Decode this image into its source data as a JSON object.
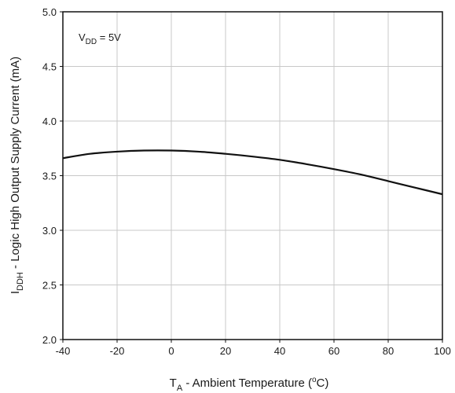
{
  "chart_data": {
    "type": "line",
    "title": "",
    "x": [
      -40,
      -30,
      -20,
      -10,
      0,
      10,
      20,
      30,
      40,
      50,
      60,
      70,
      80,
      90,
      100
    ],
    "series": [
      {
        "values": [
          3.66,
          3.7,
          3.72,
          3.73,
          3.73,
          3.72,
          3.7,
          3.675,
          3.645,
          3.605,
          3.56,
          3.51,
          3.45,
          3.39,
          3.33
        ]
      }
    ],
    "xlim": [
      -40,
      100
    ],
    "ylim": [
      2.0,
      5.0
    ],
    "x_ticks": [
      "-40",
      "-20",
      "0",
      "20",
      "40",
      "60",
      "80",
      "100"
    ],
    "y_ticks": [
      "2.0",
      "2.5",
      "3.0",
      "3.5",
      "4.0",
      "4.5",
      "5.0"
    ],
    "xlabel": {
      "main": "T",
      "sub": "A",
      "rest": " - Ambient Temperature (",
      "sup": "o",
      "end": "C)"
    },
    "ylabel": {
      "main": "I",
      "sub": "DDH",
      "rest": " - Logic High Output Supply Current (mA)"
    },
    "annotation": {
      "main": "V",
      "sub": "DD",
      "rest": " = 5V"
    },
    "grid": true,
    "line_color": "#111111",
    "grid_color": "#c8c8c8"
  }
}
